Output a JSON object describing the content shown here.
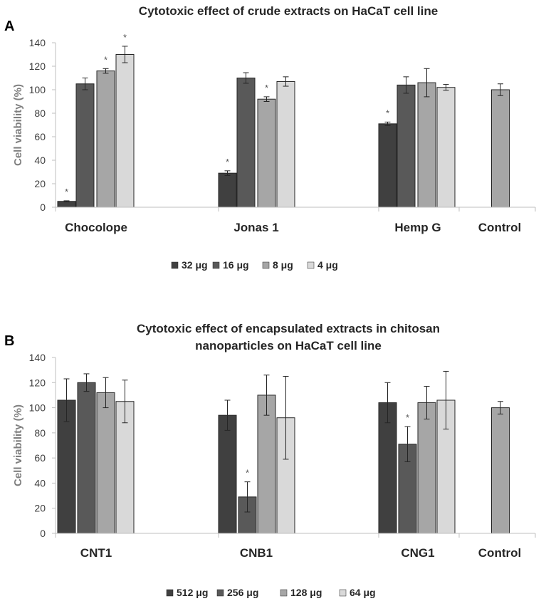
{
  "chart_data": [
    {
      "panel": "A",
      "type": "bar",
      "title": "Cytotoxic effect of crude extracts on HaCaT cell line",
      "xlabel": "",
      "ylabel": "Cell viability (%)",
      "ylim": [
        0,
        140
      ],
      "yticks": [
        "0",
        "20",
        "40",
        "60",
        "80",
        "100",
        "120",
        "140"
      ],
      "legend_position": "bottom",
      "categories": [
        "Chocolope",
        "Jonas 1",
        "Hemp G",
        "Control"
      ],
      "series": [
        {
          "name": "32 μg",
          "color": "#404040",
          "values": [
            5,
            29,
            71,
            null
          ],
          "errors": [
            0.5,
            2,
            1.5,
            null
          ],
          "significant": [
            true,
            true,
            true,
            false
          ]
        },
        {
          "name": "16 μg",
          "color": "#595959",
          "values": [
            105,
            110,
            104,
            null
          ],
          "errors": [
            5,
            4.5,
            7,
            null
          ],
          "significant": [
            false,
            false,
            false,
            false
          ]
        },
        {
          "name": "8 μg",
          "color": "#a6a6a6",
          "values": [
            116,
            92,
            106,
            100
          ],
          "errors": [
            2,
            2,
            12,
            5
          ],
          "significant": [
            true,
            true,
            false,
            false
          ]
        },
        {
          "name": "4 μg",
          "color": "#d9d9d9",
          "values": [
            130,
            107,
            102,
            null
          ],
          "errors": [
            7,
            4,
            2.5,
            null
          ],
          "significant": [
            true,
            false,
            false,
            false
          ]
        }
      ]
    },
    {
      "panel": "B",
      "type": "bar",
      "title": "Cytotoxic effect of encapsulated extracts in chitosan nanoparticles on HaCaT cell line",
      "title_lines": [
        "Cytotoxic effect of encapsulated extracts in chitosan",
        "nanoparticles on HaCaT cell line"
      ],
      "xlabel": "",
      "ylabel": "Cell viability (%)",
      "ylim": [
        0,
        140
      ],
      "yticks": [
        "0",
        "20",
        "40",
        "60",
        "80",
        "100",
        "120",
        "140"
      ],
      "legend_position": "bottom",
      "categories": [
        "CNT1",
        "CNB1",
        "CNG1",
        "Control"
      ],
      "series": [
        {
          "name": "512 μg",
          "color": "#404040",
          "values": [
            106,
            94,
            104,
            null
          ],
          "errors": [
            17,
            12,
            16,
            null
          ],
          "significant": [
            false,
            false,
            false,
            false
          ]
        },
        {
          "name": "256 μg",
          "color": "#595959",
          "values": [
            120,
            29,
            71,
            null
          ],
          "errors": [
            7,
            12,
            14,
            null
          ],
          "significant": [
            false,
            true,
            true,
            false
          ]
        },
        {
          "name": "128 μg",
          "color": "#a6a6a6",
          "values": [
            112,
            110,
            104,
            100
          ],
          "errors": [
            12,
            16,
            13,
            5
          ],
          "significant": [
            false,
            false,
            false,
            false
          ]
        },
        {
          "name": "64 μg",
          "color": "#d9d9d9",
          "values": [
            105,
            92,
            106,
            null
          ],
          "errors": [
            17,
            33,
            23,
            null
          ],
          "significant": [
            false,
            false,
            false,
            false
          ]
        }
      ]
    }
  ]
}
